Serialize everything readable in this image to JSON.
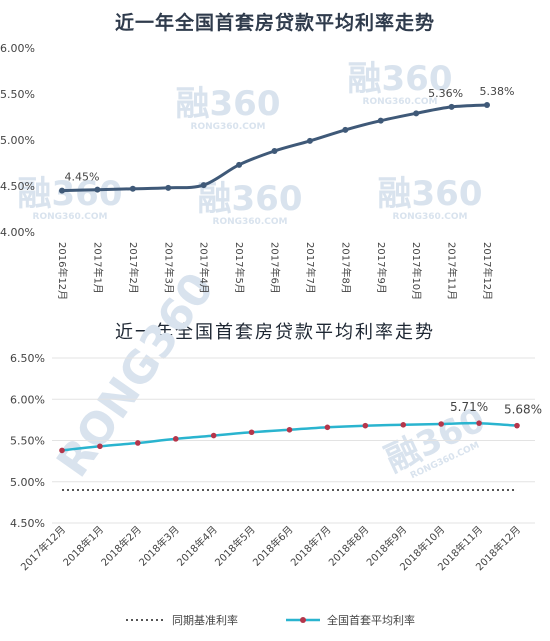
{
  "chart_data": [
    {
      "type": "line",
      "title": "近一年全国首套房贷款平均利率走势",
      "x": [
        "2016年12月",
        "2017年1月",
        "2017年2月",
        "2017年3月",
        "2017年4月",
        "2017年5月",
        "2017年6月",
        "2017年7月",
        "2017年8月",
        "2017年9月",
        "2017年10月",
        "2017年11月",
        "2017年12月"
      ],
      "yticks": [
        "4.00%",
        "4.50%",
        "5.00%",
        "5.50%",
        "6.00%"
      ],
      "ylim": [
        4.0,
        6.0
      ],
      "series": [
        {
          "values": [
            4.45,
            4.46,
            4.47,
            4.48,
            4.51,
            4.73,
            4.88,
            4.99,
            5.11,
            5.21,
            5.29,
            5.36,
            5.38
          ],
          "color": "#3f5978"
        }
      ],
      "annotations": [
        {
          "index": 0,
          "text": "4.45%"
        },
        {
          "index": 11,
          "text": "5.36%"
        },
        {
          "index": 12,
          "text": "5.38%"
        }
      ],
      "grid": false,
      "legend": "none"
    },
    {
      "type": "line",
      "title": "近一年全国首套房贷款平均利率走势",
      "x": [
        "2017年12月",
        "2018年1月",
        "2018年2月",
        "2018年3月",
        "2018年4月",
        "2018年5月",
        "2018年6月",
        "2018年7月",
        "2018年8月",
        "2018年9月",
        "2018年10月",
        "2018年11月",
        "2018年12月"
      ],
      "yticks": [
        "4.50%",
        "5.00%",
        "5.50%",
        "6.00%",
        "6.50%"
      ],
      "ylim": [
        4.5,
        6.5
      ],
      "series": [
        {
          "name": "同期基准利率",
          "values": [
            4.9,
            4.9,
            4.9,
            4.9,
            4.9,
            4.9,
            4.9,
            4.9,
            4.9,
            4.9,
            4.9,
            4.9,
            4.9
          ],
          "color": "#555555",
          "style": "dotted"
        },
        {
          "name": "全国首套平均利率",
          "values": [
            5.38,
            5.43,
            5.47,
            5.52,
            5.56,
            5.6,
            5.63,
            5.66,
            5.68,
            5.69,
            5.7,
            5.71,
            5.68
          ],
          "color": "#2ab4cf",
          "style": "solid",
          "marker_color": "#b5364b"
        }
      ],
      "annotations": [
        {
          "index": 11,
          "text": "5.71%"
        },
        {
          "index": 12,
          "text": "5.68%"
        }
      ],
      "grid": true,
      "legend": "bottom"
    }
  ],
  "watermark": {
    "text": "融360",
    "sub": "RONG360.COM",
    "color": "#d9e3ee"
  }
}
